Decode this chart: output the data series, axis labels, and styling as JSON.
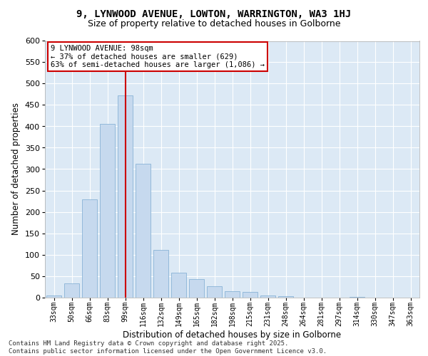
{
  "title_line1": "9, LYNWOOD AVENUE, LOWTON, WARRINGTON, WA3 1HJ",
  "title_line2": "Size of property relative to detached houses in Golborne",
  "xlabel": "Distribution of detached houses by size in Golborne",
  "ylabel": "Number of detached properties",
  "categories": [
    "33sqm",
    "50sqm",
    "66sqm",
    "83sqm",
    "99sqm",
    "116sqm",
    "132sqm",
    "149sqm",
    "165sqm",
    "182sqm",
    "198sqm",
    "215sqm",
    "231sqm",
    "248sqm",
    "264sqm",
    "281sqm",
    "297sqm",
    "314sqm",
    "330sqm",
    "347sqm",
    "363sqm"
  ],
  "values": [
    5,
    33,
    230,
    405,
    473,
    313,
    111,
    57,
    43,
    26,
    15,
    12,
    5,
    2,
    0,
    0,
    0,
    1,
    0,
    0,
    0
  ],
  "bar_color": "#c6d9ee",
  "bar_edge_color": "#7aaad0",
  "property_bin_index": 4,
  "vline_color": "#cc0000",
  "annotation_text": "9 LYNWOOD AVENUE: 98sqm\n← 37% of detached houses are smaller (629)\n63% of semi-detached houses are larger (1,086) →",
  "annotation_box_facecolor": "#ffffff",
  "annotation_box_edgecolor": "#cc0000",
  "ylim": [
    0,
    600
  ],
  "yticks": [
    0,
    50,
    100,
    150,
    200,
    250,
    300,
    350,
    400,
    450,
    500,
    550,
    600
  ],
  "background_color": "#dce9f5",
  "grid_color": "#ffffff",
  "fig_facecolor": "#ffffff",
  "footer_line1": "Contains HM Land Registry data © Crown copyright and database right 2025.",
  "footer_line2": "Contains public sector information licensed under the Open Government Licence v3.0.",
  "title_fontsize": 10,
  "subtitle_fontsize": 9,
  "axis_label_fontsize": 8.5,
  "tick_fontsize": 7,
  "annotation_fontsize": 7.5,
  "footer_fontsize": 6.5
}
